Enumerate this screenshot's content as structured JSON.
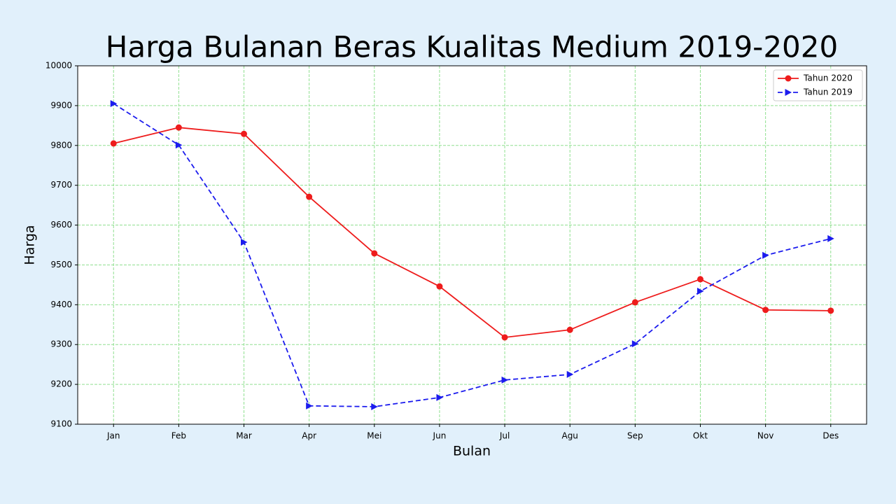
{
  "chart_data": {
    "type": "line",
    "title": "Harga Bulanan Beras Kualitas Medium 2019-2020",
    "xlabel": "Bulan",
    "ylabel": "Harga",
    "categories": [
      "Jan",
      "Feb",
      "Mar",
      "Apr",
      "Mei",
      "Jun",
      "Jul",
      "Agu",
      "Sep",
      "Okt",
      "Nov",
      "Des"
    ],
    "series": [
      {
        "name": "Tahun 2020",
        "color": "#ee1c1c",
        "marker": "circle",
        "dash": "solid",
        "values": [
          9805,
          9845,
          9829,
          9671,
          9529,
          9446,
          9318,
          9337,
          9406,
          9464,
          9387,
          9385
        ]
      },
      {
        "name": "Tahun 2019",
        "color": "#1c1cee",
        "marker": "triangle-right",
        "dash": "dashed",
        "values": [
          9905,
          9801,
          9557,
          9146,
          9144,
          9167,
          9211,
          9225,
          9302,
          9434,
          9524,
          9566
        ]
      }
    ],
    "ylim": [
      9100,
      10000
    ],
    "yticks": [
      9100,
      9200,
      9300,
      9400,
      9500,
      9600,
      9700,
      9800,
      9900,
      10000
    ],
    "grid": true,
    "grid_color": "#90e090",
    "legend": "upper-right"
  }
}
